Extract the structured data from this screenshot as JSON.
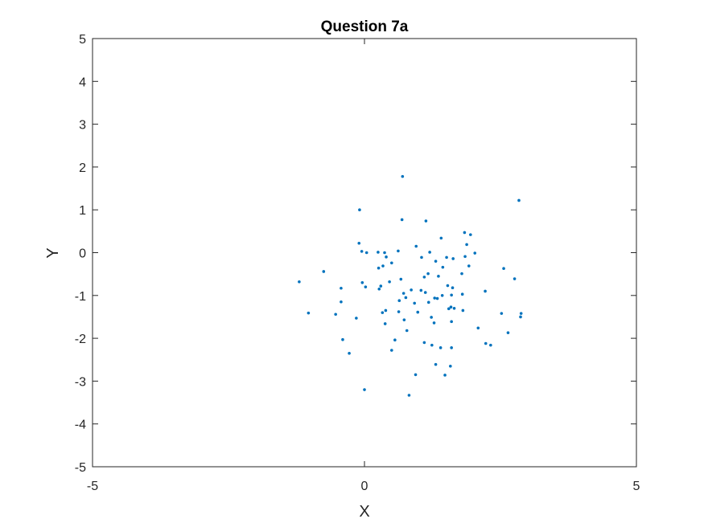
{
  "chart_data": {
    "type": "scatter",
    "title": "Question 7a",
    "xlabel": "X",
    "ylabel": "Y",
    "xlim": [
      -5,
      5
    ],
    "ylim": [
      -5,
      5
    ],
    "xticks": [
      -5,
      0,
      5
    ],
    "yticks": [
      -5,
      -4,
      -3,
      -2,
      -1,
      0,
      1,
      2,
      3,
      4,
      5
    ],
    "grid": false,
    "legend": "none",
    "marker_color": "#0072BD",
    "series": [
      {
        "points": [
          [
            0.7,
            1.78
          ],
          [
            -0.09,
            1.0
          ],
          [
            2.84,
            1.22
          ],
          [
            0.69,
            0.77
          ],
          [
            1.13,
            0.74
          ],
          [
            1.84,
            0.47
          ],
          [
            1.95,
            0.42
          ],
          [
            1.41,
            0.34
          ],
          [
            -0.1,
            0.22
          ],
          [
            1.88,
            0.19
          ],
          [
            0.95,
            0.15
          ],
          [
            -0.05,
            0.03
          ],
          [
            0.04,
            0.0
          ],
          [
            0.25,
            0.01
          ],
          [
            0.37,
            0.0
          ],
          [
            0.62,
            0.04
          ],
          [
            1.2,
            0.01
          ],
          [
            2.03,
            -0.01
          ],
          [
            0.4,
            -0.1
          ],
          [
            1.05,
            -0.11
          ],
          [
            1.51,
            -0.11
          ],
          [
            1.63,
            -0.14
          ],
          [
            1.85,
            -0.09
          ],
          [
            1.31,
            -0.2
          ],
          [
            0.5,
            -0.24
          ],
          [
            0.34,
            -0.31
          ],
          [
            1.92,
            -0.31
          ],
          [
            1.44,
            -0.34
          ],
          [
            2.56,
            -0.37
          ],
          [
            0.26,
            -0.36
          ],
          [
            -0.75,
            -0.44
          ],
          [
            1.17,
            -0.49
          ],
          [
            1.36,
            -0.55
          ],
          [
            1.79,
            -0.49
          ],
          [
            1.1,
            -0.57
          ],
          [
            0.67,
            -0.62
          ],
          [
            2.76,
            -0.61
          ],
          [
            -1.2,
            -0.68
          ],
          [
            -0.04,
            -0.7
          ],
          [
            0.46,
            -0.68
          ],
          [
            0.02,
            -0.8
          ],
          [
            -0.43,
            -0.83
          ],
          [
            0.3,
            -0.78
          ],
          [
            0.27,
            -0.85
          ],
          [
            1.53,
            -0.77
          ],
          [
            1.62,
            -0.82
          ],
          [
            1.04,
            -0.88
          ],
          [
            0.86,
            -0.87
          ],
          [
            1.12,
            -0.93
          ],
          [
            2.22,
            -0.9
          ],
          [
            0.72,
            -0.95
          ],
          [
            1.6,
            -0.99
          ],
          [
            1.43,
            -1.0
          ],
          [
            1.8,
            -0.97
          ],
          [
            0.76,
            -1.05
          ],
          [
            1.29,
            -1.06
          ],
          [
            1.34,
            -1.07
          ],
          [
            0.64,
            -1.12
          ],
          [
            -0.43,
            -1.15
          ],
          [
            1.18,
            -1.16
          ],
          [
            0.92,
            -1.18
          ],
          [
            1.59,
            -1.27
          ],
          [
            1.55,
            -1.31
          ],
          [
            1.65,
            -1.3
          ],
          [
            1.81,
            -1.35
          ],
          [
            0.39,
            -1.35
          ],
          [
            2.88,
            -1.42
          ],
          [
            -1.03,
            -1.41
          ],
          [
            0.33,
            -1.4
          ],
          [
            0.98,
            -1.39
          ],
          [
            2.52,
            -1.42
          ],
          [
            -0.53,
            -1.44
          ],
          [
            0.63,
            -1.38
          ],
          [
            1.23,
            -1.51
          ],
          [
            2.87,
            -1.5
          ],
          [
            -0.15,
            -1.53
          ],
          [
            0.73,
            -1.57
          ],
          [
            1.6,
            -1.61
          ],
          [
            1.28,
            -1.64
          ],
          [
            0.38,
            -1.66
          ],
          [
            2.09,
            -1.76
          ],
          [
            0.78,
            -1.82
          ],
          [
            2.64,
            -1.87
          ],
          [
            -0.4,
            -2.03
          ],
          [
            0.56,
            -2.04
          ],
          [
            1.1,
            -2.1
          ],
          [
            1.24,
            -2.16
          ],
          [
            2.23,
            -2.12
          ],
          [
            2.32,
            -2.16
          ],
          [
            1.4,
            -2.22
          ],
          [
            1.6,
            -2.22
          ],
          [
            0.5,
            -2.28
          ],
          [
            -0.28,
            -2.35
          ],
          [
            1.31,
            -2.61
          ],
          [
            1.58,
            -2.65
          ],
          [
            0.94,
            -2.85
          ],
          [
            1.48,
            -2.86
          ],
          [
            0.0,
            -3.2
          ],
          [
            0.82,
            -3.33
          ]
        ]
      }
    ]
  }
}
